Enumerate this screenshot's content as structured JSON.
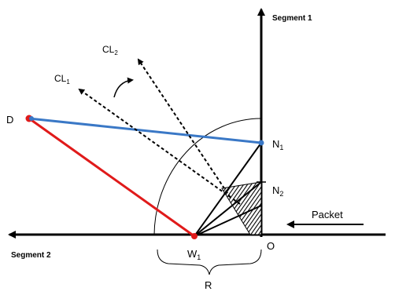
{
  "labels": {
    "segment1": "Segment 1",
    "segment2": "Segment 2",
    "D": "D",
    "N1_main": "N",
    "N1_sub": "1",
    "N2_main": "N",
    "N2_sub": "2",
    "W1_main": "W",
    "W1_sub": "1",
    "O": "O",
    "R": "R",
    "CL1_main": "CL",
    "CL1_sub": "1",
    "CL2_main": "CL",
    "CL2_sub": "2",
    "packet": "Packet"
  },
  "colors": {
    "line": "#000000",
    "blue": "#3a78c6",
    "red": "#e01a1a",
    "background": "#ffffff"
  }
}
